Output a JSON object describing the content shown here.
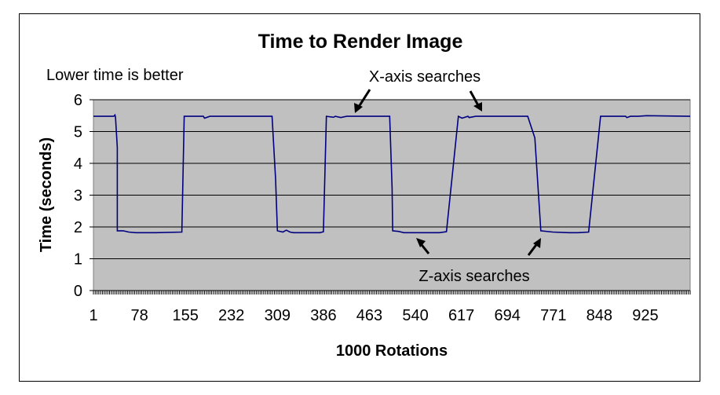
{
  "chart_data": {
    "type": "line",
    "title": "Time to Render Image",
    "subtitle": "Lower time is better",
    "xlabel": "1000 Rotations",
    "ylabel": "Time (seconds)",
    "ylim": [
      0,
      6
    ],
    "yticks": [
      "0",
      "1",
      "2",
      "3",
      "4",
      "5",
      "6"
    ],
    "xlim": [
      1,
      1000
    ],
    "xticks": [
      1,
      78,
      155,
      232,
      309,
      386,
      463,
      540,
      617,
      694,
      771,
      848,
      925
    ],
    "grid": true,
    "colors": {
      "plot_bg": "#c0c0c0",
      "line": "#000080",
      "grid": "#000000"
    },
    "annotations": [
      {
        "text": "X-axis searches",
        "arrows_to_x": [
          463,
          694
        ]
      },
      {
        "text": "Z-axis searches",
        "arrows_to_x": [
          540,
          771
        ]
      }
    ],
    "series": [
      {
        "values_x": [
          1,
          35,
          37,
          38,
          41,
          41,
          41,
          51,
          60,
          72,
          105,
          149,
          153,
          153,
          185,
          187,
          196,
          200,
          300,
          306,
          309,
          318,
          324,
          330,
          336,
          339,
          350,
          380,
          386,
          391,
          403,
          406,
          415,
          425,
          440,
          463,
          497,
          501,
          502,
          512,
          521,
          540,
          580,
          592,
          612,
          618,
          628,
          630,
          641,
          680,
          694,
          728,
          740,
          750,
          770,
          797,
          809,
          812,
          830,
          850,
          892,
          894,
          900,
          913,
          927,
          1000
        ],
        "values_y": [
          5.48,
          5.48,
          5.52,
          5.45,
          4.5,
          3.8,
          1.88,
          1.88,
          1.84,
          1.82,
          1.82,
          1.84,
          5.46,
          5.48,
          5.48,
          5.42,
          5.48,
          5.48,
          5.48,
          3.5,
          1.88,
          1.84,
          1.9,
          1.84,
          1.82,
          1.82,
          1.82,
          1.82,
          1.85,
          5.48,
          5.45,
          5.48,
          5.44,
          5.48,
          5.48,
          5.48,
          5.48,
          3.2,
          1.88,
          1.86,
          1.82,
          1.82,
          1.82,
          1.85,
          5.48,
          5.42,
          5.48,
          5.44,
          5.48,
          5.48,
          5.48,
          5.48,
          4.8,
          1.88,
          1.84,
          1.82,
          1.82,
          1.82,
          1.84,
          5.48,
          5.48,
          5.44,
          5.48,
          5.48,
          5.5,
          5.48
        ]
      }
    ]
  }
}
